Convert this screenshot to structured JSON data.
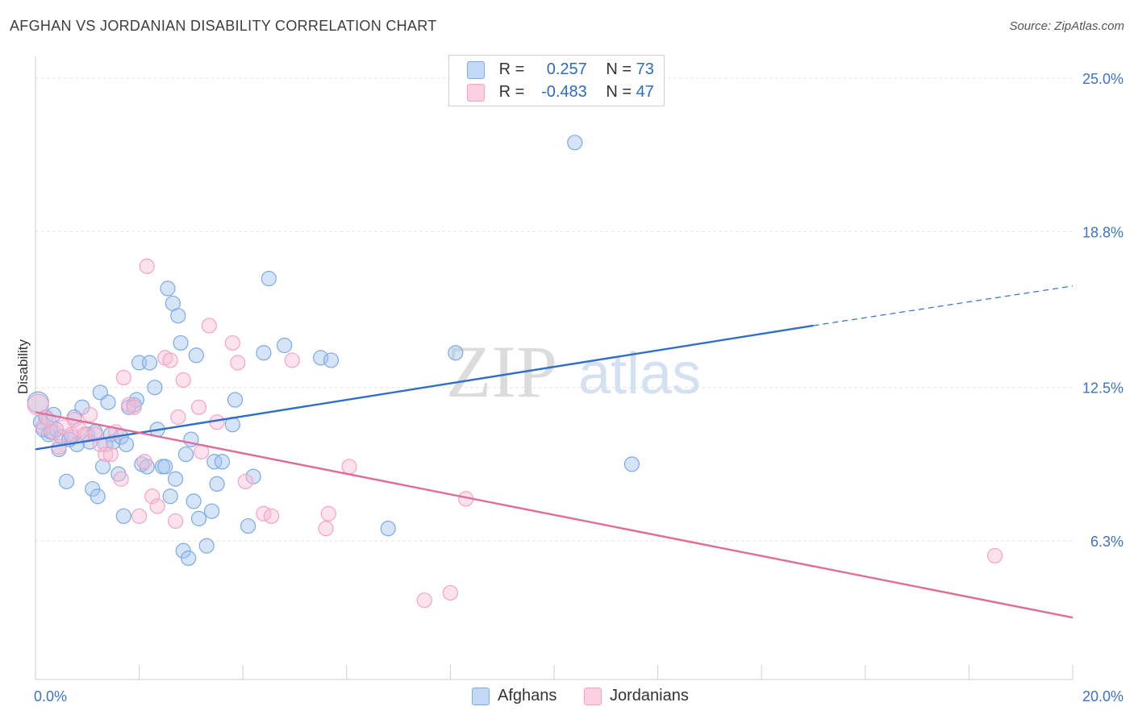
{
  "title": "AFGHAN VS JORDANIAN DISABILITY CORRELATION CHART",
  "source": "Source: ZipAtlas.com",
  "watermark": {
    "zip": "ZIP",
    "atlas": "atlas"
  },
  "chart_data": {
    "type": "scatter",
    "ylabel": "Disability",
    "xlim": [
      0,
      20
    ],
    "ylim": [
      0,
      26
    ],
    "x_tick_labels": [
      "0.0%",
      "20.0%"
    ],
    "y_ticks": [
      {
        "value": 25.0,
        "label": "25.0%"
      },
      {
        "value": 18.8,
        "label": "18.8%"
      },
      {
        "value": 12.5,
        "label": "12.5%"
      },
      {
        "value": 6.3,
        "label": "6.3%"
      }
    ],
    "grid": true,
    "legend_placement": "top-center",
    "series": [
      {
        "name": "Afghans",
        "color": "#7aaae8",
        "line_color": "#2f6fcb",
        "r_label": "R =",
        "r_value": "0.257",
        "n_label": "N =",
        "n_value": "73",
        "trend": {
          "x0": 0.0,
          "y0": 10.0,
          "x1": 15.0,
          "y1": 15.0,
          "dashed_to_x": 20.0,
          "dashed_to_y": 16.6
        },
        "points": [
          [
            0.05,
            11.9
          ],
          [
            0.1,
            11.1
          ],
          [
            0.15,
            10.8
          ],
          [
            0.2,
            11.3
          ],
          [
            0.25,
            10.6
          ],
          [
            0.3,
            10.7
          ],
          [
            0.35,
            11.4
          ],
          [
            0.4,
            10.8
          ],
          [
            0.45,
            10.0
          ],
          [
            0.5,
            10.5
          ],
          [
            0.6,
            8.7
          ],
          [
            0.7,
            10.5
          ],
          [
            0.75,
            11.3
          ],
          [
            0.8,
            10.2
          ],
          [
            0.9,
            11.7
          ],
          [
            1.0,
            10.6
          ],
          [
            1.05,
            10.3
          ],
          [
            1.1,
            8.4
          ],
          [
            1.2,
            8.1
          ],
          [
            1.25,
            12.3
          ],
          [
            1.3,
            9.3
          ],
          [
            1.35,
            10.2
          ],
          [
            1.4,
            11.9
          ],
          [
            1.45,
            10.6
          ],
          [
            1.5,
            10.3
          ],
          [
            1.6,
            9.0
          ],
          [
            1.65,
            10.5
          ],
          [
            1.7,
            7.3
          ],
          [
            1.75,
            10.2
          ],
          [
            1.8,
            11.7
          ],
          [
            1.9,
            11.8
          ],
          [
            1.95,
            12.0
          ],
          [
            2.0,
            13.5
          ],
          [
            2.05,
            9.4
          ],
          [
            2.15,
            9.3
          ],
          [
            2.2,
            13.5
          ],
          [
            2.3,
            12.5
          ],
          [
            2.35,
            10.8
          ],
          [
            2.45,
            9.3
          ],
          [
            2.5,
            9.3
          ],
          [
            2.55,
            16.5
          ],
          [
            2.6,
            8.1
          ],
          [
            2.65,
            15.9
          ],
          [
            2.7,
            8.8
          ],
          [
            2.75,
            15.4
          ],
          [
            2.8,
            14.3
          ],
          [
            2.85,
            5.9
          ],
          [
            2.9,
            9.8
          ],
          [
            2.95,
            5.6
          ],
          [
            3.0,
            10.4
          ],
          [
            3.05,
            7.9
          ],
          [
            3.1,
            13.8
          ],
          [
            3.15,
            7.2
          ],
          [
            3.3,
            6.1
          ],
          [
            3.4,
            7.5
          ],
          [
            3.45,
            9.5
          ],
          [
            3.5,
            8.6
          ],
          [
            3.6,
            9.5
          ],
          [
            3.8,
            11.0
          ],
          [
            3.85,
            12.0
          ],
          [
            4.1,
            6.9
          ],
          [
            4.2,
            8.9
          ],
          [
            4.4,
            13.9
          ],
          [
            4.5,
            16.9
          ],
          [
            4.8,
            14.2
          ],
          [
            5.5,
            13.7
          ],
          [
            5.7,
            13.6
          ],
          [
            6.8,
            6.8
          ],
          [
            8.1,
            13.9
          ],
          [
            10.4,
            22.4
          ],
          [
            11.5,
            9.4
          ],
          [
            0.65,
            10.4
          ],
          [
            1.15,
            10.7
          ]
        ]
      },
      {
        "name": "Jordanians",
        "color": "#f5a3c0",
        "line_color": "#e06c98",
        "r_label": "R =",
        "r_value": "-0.483",
        "n_label": "N =",
        "n_value": "47",
        "trend": {
          "x0": 0.0,
          "y0": 11.5,
          "x1": 20.0,
          "y1": 3.2
        },
        "points": [
          [
            0.05,
            11.8
          ],
          [
            0.15,
            10.9
          ],
          [
            0.25,
            11.2
          ],
          [
            0.35,
            10.7
          ],
          [
            0.45,
            10.1
          ],
          [
            0.55,
            10.9
          ],
          [
            0.7,
            10.6
          ],
          [
            0.75,
            11.2
          ],
          [
            0.85,
            10.8
          ],
          [
            0.95,
            10.6
          ],
          [
            1.05,
            11.4
          ],
          [
            1.15,
            10.6
          ],
          [
            1.25,
            10.2
          ],
          [
            1.35,
            9.8
          ],
          [
            1.45,
            9.8
          ],
          [
            1.55,
            10.7
          ],
          [
            1.65,
            8.8
          ],
          [
            1.7,
            12.9
          ],
          [
            1.8,
            11.8
          ],
          [
            1.9,
            11.7
          ],
          [
            2.0,
            7.3
          ],
          [
            2.1,
            9.5
          ],
          [
            2.15,
            17.4
          ],
          [
            2.25,
            8.1
          ],
          [
            2.35,
            7.7
          ],
          [
            2.5,
            13.7
          ],
          [
            2.6,
            13.6
          ],
          [
            2.7,
            7.1
          ],
          [
            2.75,
            11.3
          ],
          [
            2.85,
            12.8
          ],
          [
            3.15,
            11.7
          ],
          [
            3.2,
            9.9
          ],
          [
            3.35,
            15.0
          ],
          [
            3.5,
            11.1
          ],
          [
            3.8,
            14.3
          ],
          [
            3.9,
            13.5
          ],
          [
            4.05,
            8.7
          ],
          [
            4.4,
            7.4
          ],
          [
            4.55,
            7.3
          ],
          [
            4.95,
            13.6
          ],
          [
            5.6,
            6.8
          ],
          [
            5.65,
            7.4
          ],
          [
            6.05,
            9.3
          ],
          [
            7.5,
            3.9
          ],
          [
            8.0,
            4.2
          ],
          [
            8.3,
            8.0
          ],
          [
            18.5,
            5.7
          ]
        ]
      }
    ]
  }
}
